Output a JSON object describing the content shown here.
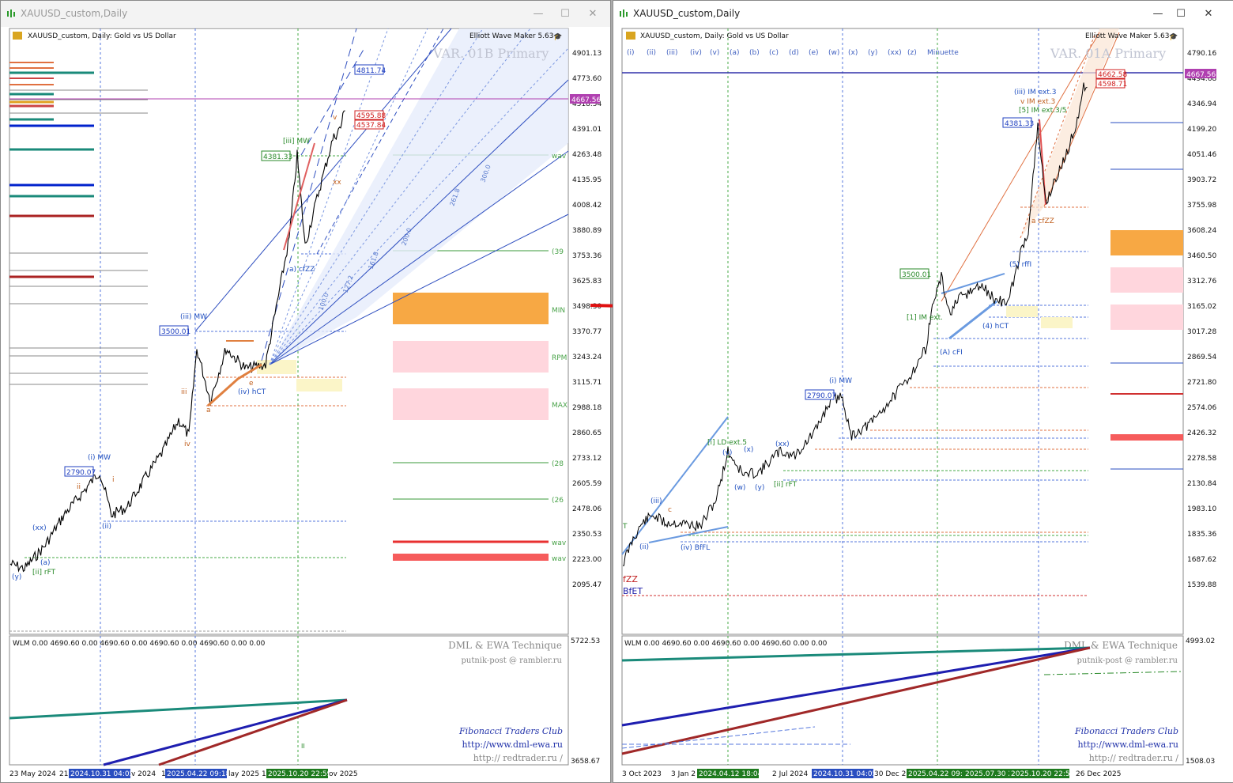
{
  "left": {
    "title": "XAUUSD_custom,Daily",
    "header": "XAUUSD_custom, Daily:  Gold vs US Dollar",
    "ewm": "Elliott Wave Maker 5.63",
    "variant": "VAR. 01B Primary",
    "price_axis": [
      "4901.13",
      "4773.60",
      "4518.54",
      "4391.01",
      "4263.48",
      "4135.95",
      "4008.42",
      "3880.89",
      "3753.36",
      "3625.83",
      "3498.30",
      "3370.77",
      "3243.24",
      "3115.71",
      "2988.18",
      "2860.65",
      "2733.12",
      "2605.59",
      "2478.06",
      "2350.53",
      "2223.00",
      "2095.47"
    ],
    "current_price": "4667.56",
    "box_labels": {
      "b4811": "4811.74",
      "b4595": "4595.88",
      "b4537": "4537.84",
      "b4381": "4381.33",
      "b3500": "3500.01",
      "b2790": "2790.07"
    },
    "right_labels": [
      "wav",
      "(39",
      "MIN",
      "RPM",
      "MAX",
      "(28",
      "(26",
      "wav",
      "wav"
    ],
    "wave_labels": {
      "iii_mw": "[iii] MW",
      "iii2_mw": "(iii) MW",
      "i_mw": "(i) MW",
      "iv_hct": "(iv) hCT",
      "ii_rft": "[ii] rFT",
      "xx": "(xx)",
      "y": "(y)",
      "a": "(a)",
      "ii": "(ii)",
      "acfzz": "a) cfZZ",
      "iii_s": "iii",
      "iv_s": "iv",
      "i_s": "i",
      "ii_s": "ii",
      "a_s": "a",
      "xx_s": "xx",
      "v_s": "v",
      "e_s": "e"
    },
    "fan_labels": [
      "100.0",
      "127.2",
      "161.8",
      "200.0",
      "261.8",
      "300.0"
    ],
    "ind_header": "WLM 0.00 4690.60 0.00 4690.60 0.00 4690.60 0.00 4690.60 0.00 0.00",
    "ind_axis_top": "5722.53",
    "ind_axis_bottom": "3658.67",
    "credit_1": "DML & EWA Technique",
    "credit_2": "putnik-post @ rambler.ru",
    "dates": [
      "23 May 2024",
      "21",
      "2024.10.31 04:05",
      "v 2024",
      "1",
      "2025.04.22 09:18",
      "lay 2025",
      "1",
      "2025.10.20 22:59",
      "ov 2025"
    ],
    "ind_small": "II"
  },
  "right": {
    "title": "XAUUSD_custom,Daily",
    "header": "XAUUSD_custom, Daily:  Gold vs US Dollar",
    "ewm": "Elliott Wave Maker 5.63",
    "variant": "VAR. 01A Primary",
    "degree_buttons": [
      "(i)",
      "(ii)",
      "(iii)",
      "(iv)",
      "(v)",
      "(a)",
      "(b)",
      "(c)",
      "(d)",
      "(e)",
      "(w)",
      "(x)",
      "(y)",
      "(xx)",
      "(z)",
      "Minuette"
    ],
    "price_axis": [
      "4790.16",
      "4494.68",
      "4346.94",
      "4199.20",
      "4051.46",
      "3903.72",
      "3755.98",
      "3608.24",
      "3460.50",
      "3312.76",
      "3165.02",
      "3017.28",
      "2869.54",
      "2721.80",
      "2574.06",
      "2426.32",
      "2278.58",
      "2130.84",
      "1983.10",
      "1835.36",
      "1687.62",
      "1539.88"
    ],
    "current_price": "4667.56",
    "box_labels": {
      "b4662": "4662.58",
      "b4598": "4598.71",
      "b4381": "4381.33",
      "b3500": "3500.01",
      "b2790": "2790.07"
    },
    "wave_labels": {
      "iii_im": "(iii) IM ext.3",
      "v_im": "v IM ext.3",
      "s5": "[5] IM ext.3/5",
      "i_ld": "[i] LD ext.5",
      "ii_rft": "[ii] rFT",
      "iv_bfl": "(iv) BfFL",
      "i_mw": "(i) MW",
      "ii_s": "(ii)",
      "iii_s": "(iii)",
      "xx_s": "(xx)",
      "w_s": "(w)",
      "y_s": "(y)",
      "x_s": "(x)",
      "v_s": "(v)",
      "a_cfzz": "a cfZZ",
      "acfi": "(A) cFI",
      "hct": "(4) hCT",
      "rffi": "(5) rffI",
      "im1": "[1] IM ext.",
      "fzz": "fZZ",
      "bfet": "BfET",
      "t_s": "T",
      "c_s": "c"
    },
    "ind_header": "WLM 0.00 4690.60 0.00 4690.60 0.00 4690.60 0.00 0.00",
    "ind_axis_top": "4993.02",
    "ind_axis_bottom": "1508.03",
    "credit_1": "DML & EWA Technique",
    "credit_2": "putnik-post @ rambler.ru",
    "dates": [
      "3 Oct 2023",
      "3 Jan 2",
      "2024.04.12 18:04",
      "2 Jul 2024",
      "2024.10.31 04:05",
      "30 Dec 2024",
      "2025.04.22 09:1",
      "2025.07.30 2",
      "2025.10.20 22:59",
      "26 Dec 2025"
    ]
  },
  "shared": {
    "fib_club": "Fibonacci    Traders    Club",
    "url1": "http://www.dml-ewa.ru",
    "url2": "http://  redtrader.ru  /"
  },
  "colors": {
    "price_line": "#b040b0",
    "accent_blue": "#1f3fbf",
    "orange_zone": "#f7a844",
    "pink_zone": "#ffd6dd",
    "red_zone": "#f65c5c",
    "arrow": "#e01010"
  }
}
